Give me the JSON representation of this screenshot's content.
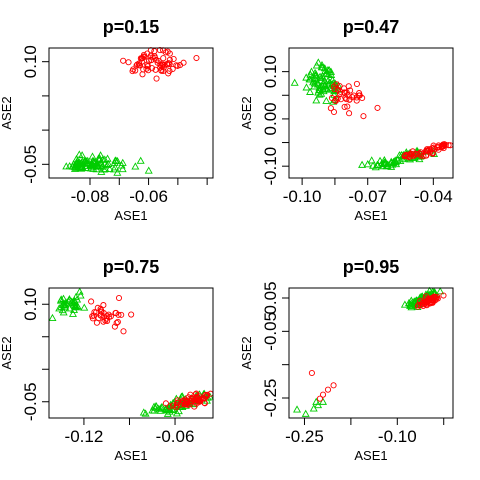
{
  "figure": {
    "width": 480,
    "height": 480
  },
  "colors": {
    "group_a": "#00cc00",
    "group_b": "#ff0000"
  },
  "chart_data": [
    {
      "type": "scatter",
      "title": "p=0.15",
      "xlabel": "ASE1",
      "ylabel": "ASE2",
      "xlim": [
        -0.094,
        -0.038
      ],
      "ylim": [
        -0.07,
        0.12
      ],
      "xticks": [
        {
          "value": -0.08,
          "label": "-0.08"
        },
        {
          "value": -0.06,
          "label": "-0.06"
        }
      ],
      "yticks": [
        {
          "value": 0.1,
          "label": "0.10"
        },
        {
          "value": -0.05,
          "label": "-0.05"
        }
      ],
      "minor_xticks": [
        -0.07,
        -0.05,
        -0.04
      ],
      "minor_yticks": [
        0.05,
        0.0
      ],
      "clusters": [
        {
          "series": "group_a",
          "marker": "triangle",
          "n": 90,
          "cx": -0.0795,
          "cy": -0.049,
          "sx": 0.0055,
          "sy": 0.0055,
          "dx": 0.0,
          "dy": 0.0,
          "seed": 11
        },
        {
          "series": "group_b",
          "marker": "circle",
          "n": 70,
          "cx": -0.0575,
          "cy": 0.097,
          "sx": 0.0045,
          "sy": 0.008,
          "dx": 0.0,
          "dy": 0.0,
          "seed": 23
        }
      ]
    },
    {
      "type": "scatter",
      "title": "p=0.47",
      "xlabel": "ASE1",
      "ylabel": "ASE2",
      "xlim": [
        -0.106,
        -0.031
      ],
      "ylim": [
        -0.125,
        0.15
      ],
      "xticks": [
        {
          "value": -0.1,
          "label": "-0.10"
        },
        {
          "value": -0.07,
          "label": "-0.07"
        },
        {
          "value": -0.04,
          "label": "-0.04"
        }
      ],
      "yticks": [
        {
          "value": 0.1,
          "label": "0.10"
        },
        {
          "value": 0.0,
          "label": "0.00"
        },
        {
          "value": -0.1,
          "label": "-0.10"
        }
      ],
      "minor_xticks": [
        -0.085,
        -0.055
      ],
      "minor_yticks": [
        0.05,
        -0.05
      ],
      "clusters": [
        {
          "series": "group_a",
          "marker": "triangle",
          "n": 75,
          "cx": -0.0905,
          "cy": 0.077,
          "sx": 0.004,
          "sy": 0.018,
          "dx": 0.0,
          "dy": 0.0,
          "seed": 5
        },
        {
          "series": "group_b",
          "marker": "circle",
          "n": 40,
          "cx": -0.0795,
          "cy": 0.047,
          "sx": 0.0035,
          "sy": 0.015,
          "dx": 0.0,
          "dy": 0.0,
          "seed": 9
        },
        {
          "series": "group_a",
          "marker": "triangle",
          "n": 70,
          "cx": -0.0555,
          "cy": -0.085,
          "sx": 0.004,
          "sy": 0.0015,
          "dx": 0.011,
          "dy": 0.018,
          "seed": 17
        },
        {
          "series": "group_b",
          "marker": "circle",
          "n": 55,
          "cx": -0.0425,
          "cy": -0.068,
          "sx": 0.003,
          "sy": 0.0015,
          "dx": 0.008,
          "dy": 0.013,
          "seed": 31
        }
      ]
    },
    {
      "type": "scatter",
      "title": "p=0.75",
      "xlabel": "ASE1",
      "ylabel": "ASE2",
      "xlim": [
        -0.143,
        -0.035
      ],
      "ylim": [
        -0.075,
        0.125
      ],
      "xticks": [
        {
          "value": -0.12,
          "label": "-0.12"
        },
        {
          "value": -0.06,
          "label": "-0.06"
        }
      ],
      "yticks": [
        {
          "value": 0.1,
          "label": "0.10"
        },
        {
          "value": -0.05,
          "label": "-0.05"
        }
      ],
      "minor_xticks": [
        -0.09
      ],
      "minor_yticks": [
        0.05,
        0.0
      ],
      "clusters": [
        {
          "series": "group_a",
          "marker": "triangle",
          "n": 40,
          "cx": -0.129,
          "cy": 0.1,
          "sx": 0.005,
          "sy": 0.008,
          "dx": 0.0,
          "dy": 0.0,
          "seed": 3
        },
        {
          "series": "group_b",
          "marker": "circle",
          "n": 35,
          "cx": -0.105,
          "cy": 0.082,
          "sx": 0.006,
          "sy": 0.012,
          "dx": 0.0,
          "dy": 0.0,
          "seed": 7
        },
        {
          "series": "group_a",
          "marker": "triangle",
          "n": 75,
          "cx": -0.058,
          "cy": -0.055,
          "sx": 0.006,
          "sy": 0.002,
          "dx": 0.018,
          "dy": 0.014,
          "seed": 13
        },
        {
          "series": "group_b",
          "marker": "circle",
          "n": 60,
          "cx": -0.048,
          "cy": -0.047,
          "sx": 0.005,
          "sy": 0.002,
          "dx": 0.012,
          "dy": 0.009,
          "seed": 29
        }
      ]
    },
    {
      "type": "scatter",
      "title": "p=0.95",
      "xlabel": "ASE1",
      "ylabel": "ASE2",
      "xlim": [
        -0.275,
        -0.01
      ],
      "ylim": [
        -0.31,
        0.08
      ],
      "xticks": [
        {
          "value": -0.25,
          "label": "-0.25"
        },
        {
          "value": -0.1,
          "label": "-0.10"
        }
      ],
      "yticks": [
        {
          "value": 0.05,
          "label": "0.05"
        },
        {
          "value": -0.05,
          "label": "-0.05"
        },
        {
          "value": -0.25,
          "label": "-0.25"
        }
      ],
      "minor_xticks": [
        -0.175,
        -0.025
      ],
      "minor_yticks": [
        -0.15
      ],
      "clusters": [
        {
          "series": "group_a",
          "marker": "triangle",
          "n": 70,
          "cx": -0.058,
          "cy": 0.047,
          "sx": 0.006,
          "sy": 0.003,
          "dx": 0.018,
          "dy": 0.022,
          "seed": 41
        },
        {
          "series": "group_b",
          "marker": "circle",
          "n": 45,
          "cx": -0.048,
          "cy": 0.04,
          "sx": 0.005,
          "sy": 0.003,
          "dx": 0.012,
          "dy": 0.014,
          "seed": 43
        }
      ],
      "points": [
        {
          "series": "group_a",
          "marker": "triangle",
          "x": -0.262,
          "y": -0.285
        },
        {
          "series": "group_a",
          "marker": "triangle",
          "x": -0.248,
          "y": -0.298
        },
        {
          "series": "group_a",
          "marker": "triangle",
          "x": -0.235,
          "y": -0.282
        },
        {
          "series": "group_a",
          "marker": "triangle",
          "x": -0.228,
          "y": -0.272
        },
        {
          "series": "group_a",
          "marker": "triangle",
          "x": -0.22,
          "y": -0.262
        },
        {
          "series": "group_a",
          "marker": "triangle",
          "x": -0.231,
          "y": -0.262
        },
        {
          "series": "group_b",
          "marker": "circle",
          "x": -0.238,
          "y": -0.175
        },
        {
          "series": "group_b",
          "marker": "circle",
          "x": -0.22,
          "y": -0.24
        },
        {
          "series": "group_b",
          "marker": "circle",
          "x": -0.212,
          "y": -0.225
        },
        {
          "series": "group_b",
          "marker": "circle",
          "x": -0.203,
          "y": -0.212
        },
        {
          "series": "group_b",
          "marker": "circle",
          "x": -0.225,
          "y": -0.252
        }
      ]
    }
  ]
}
